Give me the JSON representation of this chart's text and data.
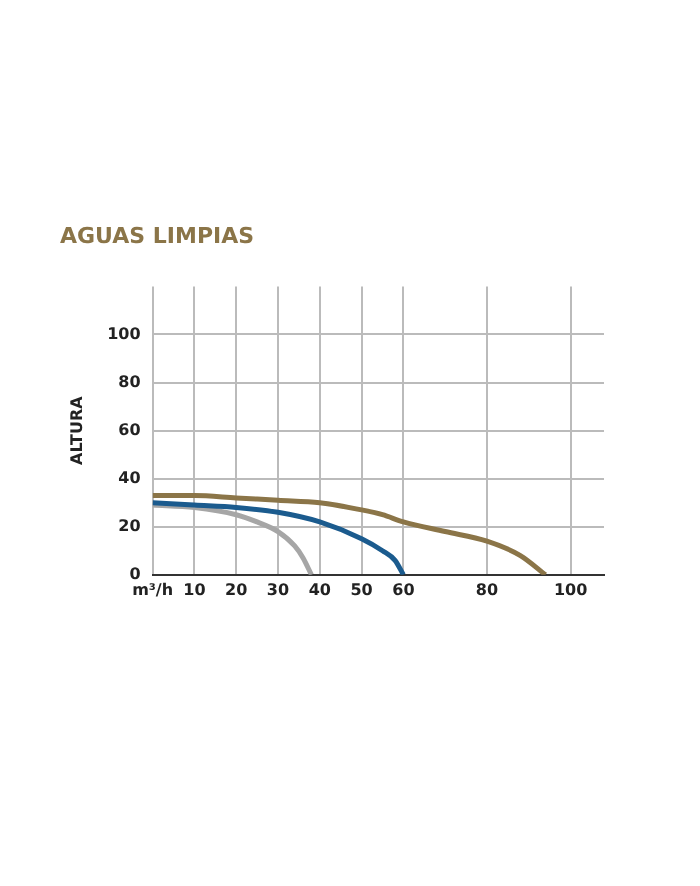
{
  "chart_data": {
    "type": "line",
    "title": "AGUAS LIMPIAS",
    "ylabel": "ALTURA",
    "xlim": [
      0,
      108
    ],
    "xticks": [
      {
        "value": 0,
        "label": "m³/h"
      },
      10,
      20,
      30,
      40,
      50,
      60,
      80,
      100
    ],
    "ylim": [
      0,
      120
    ],
    "yticks": [
      0,
      20,
      40,
      60,
      80,
      100
    ],
    "grid": true,
    "marker": "none",
    "line_style": "solid",
    "series": [
      {
        "color": "#1b5b8e",
        "x": [
          0,
          10,
          20,
          30,
          40,
          50,
          55,
          58,
          60
        ],
        "values": [
          30,
          29,
          28,
          26,
          22,
          15,
          10,
          6,
          0
        ]
      },
      {
        "color": "#8b7548",
        "x": [
          0,
          10,
          20,
          30,
          40,
          50,
          55,
          60,
          70,
          80,
          88,
          94
        ],
        "values": [
          33,
          33,
          32,
          31,
          30,
          27,
          25,
          22,
          18,
          14,
          8,
          0
        ]
      },
      {
        "color": "#a6a6a6",
        "x": [
          0,
          10,
          20,
          25,
          30,
          34,
          36,
          38
        ],
        "values": [
          29,
          28,
          25,
          22,
          18,
          12,
          7,
          0
        ]
      }
    ]
  }
}
